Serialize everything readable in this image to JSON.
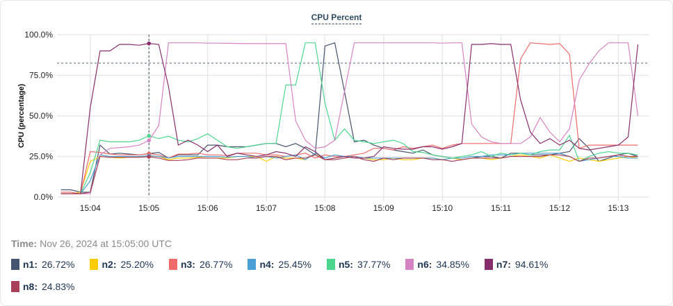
{
  "chart_data": {
    "type": "line",
    "title": "CPU Percent",
    "ylabel": "CPU (percentage)",
    "xlabel": "",
    "ylim": [
      0,
      100
    ],
    "xlim": [
      "15:03:26",
      "15:13:31"
    ],
    "yticks": [
      "0.0%",
      "25.0%",
      "50.0%",
      "75.0%",
      "100.0%"
    ],
    "yticks_values": [
      0,
      25,
      50,
      75,
      100
    ],
    "xticks": [
      "15:04",
      "15:05",
      "15:06",
      "15:07",
      "15:08",
      "15:09",
      "15:10",
      "15:11",
      "15:12",
      "15:13"
    ],
    "grid": true,
    "threshold": 82.5,
    "crosshair_time": "15:05:00",
    "x": [
      "15:03:30",
      "15:03:40",
      "15:03:50",
      "15:04:00",
      "15:04:10",
      "15:04:20",
      "15:04:30",
      "15:04:40",
      "15:04:50",
      "15:05:00",
      "15:05:10",
      "15:05:20",
      "15:05:30",
      "15:05:40",
      "15:05:50",
      "15:06:00",
      "15:06:10",
      "15:06:20",
      "15:06:30",
      "15:06:40",
      "15:06:50",
      "15:07:00",
      "15:07:10",
      "15:07:20",
      "15:07:30",
      "15:07:40",
      "15:07:50",
      "15:08:00",
      "15:08:10",
      "15:08:20",
      "15:08:30",
      "15:08:40",
      "15:08:50",
      "15:09:00",
      "15:09:10",
      "15:09:20",
      "15:09:30",
      "15:09:40",
      "15:09:50",
      "15:10:00",
      "15:10:10",
      "15:10:20",
      "15:10:30",
      "15:10:40",
      "15:10:50",
      "15:11:00",
      "15:11:10",
      "15:11:20",
      "15:11:30",
      "15:11:40",
      "15:11:50",
      "15:12:00",
      "15:12:10",
      "15:12:20",
      "15:12:30",
      "15:12:40",
      "15:12:50",
      "15:13:00",
      "15:13:10",
      "15:13:20"
    ],
    "series": [
      {
        "name": "n1",
        "color": "#44546f",
        "values": [
          4.5,
          4.5,
          3,
          3,
          32,
          26.5,
          27,
          26.5,
          26,
          26.72,
          27.5,
          24,
          26,
          26,
          26,
          32,
          32,
          31,
          31,
          31,
          32,
          33,
          33,
          31,
          33,
          30,
          26,
          93,
          95,
          65,
          34,
          35,
          32,
          30,
          29,
          28,
          27,
          29,
          26,
          25,
          24,
          23,
          24,
          25,
          25,
          24,
          27,
          27,
          26,
          26,
          26,
          27,
          28,
          36,
          30,
          22,
          24,
          26,
          27,
          25
        ]
      },
      {
        "name": "n2",
        "color": "#ffcc00",
        "values": [
          2,
          2,
          3,
          22,
          25,
          24.5,
          24,
          24.5,
          24.5,
          25.2,
          25,
          23,
          24,
          24,
          24.5,
          24,
          24,
          24,
          25,
          25,
          25,
          22,
          25,
          24,
          24,
          23,
          27,
          23,
          24,
          25,
          25,
          24,
          23,
          23,
          24,
          23,
          23,
          24,
          24,
          23,
          24,
          23,
          24,
          24,
          23,
          24,
          25,
          26,
          25,
          24,
          26,
          24,
          22,
          24,
          23,
          22,
          23,
          24,
          25,
          24
        ]
      },
      {
        "name": "n3",
        "color": "#f06a6a",
        "values": [
          3,
          3,
          2,
          28,
          27.5,
          26.5,
          26,
          26,
          26,
          26.77,
          26,
          24,
          26.5,
          26.5,
          27,
          26,
          26,
          25.5,
          27,
          27,
          27,
          26,
          26,
          25,
          26,
          27,
          24,
          26,
          25,
          25,
          26,
          27,
          30,
          30,
          29,
          31,
          30,
          31,
          32,
          30,
          32,
          33,
          33,
          33,
          33,
          33,
          33,
          85,
          95,
          94.5,
          94,
          94.5,
          88,
          30,
          32,
          32,
          32,
          32,
          32,
          32
        ]
      },
      {
        "name": "n4",
        "color": "#4a9fd4",
        "values": [
          2,
          2,
          2,
          10,
          26,
          25,
          25,
          25,
          25,
          25.45,
          25,
          24,
          25,
          25,
          25,
          25,
          25,
          24.5,
          25,
          25,
          24,
          25,
          24,
          25,
          26,
          23,
          27,
          24,
          26,
          25,
          25,
          24,
          24,
          24,
          24,
          24,
          24,
          24,
          24,
          23,
          24,
          24,
          25,
          25,
          26,
          26,
          26,
          27,
          27,
          27,
          27,
          27,
          25,
          22,
          23,
          24,
          25,
          25,
          24,
          24
        ]
      },
      {
        "name": "n5",
        "color": "#4cd68d",
        "values": [
          2,
          2,
          2,
          15,
          35,
          34,
          34,
          34,
          35,
          37.77,
          36,
          37.5,
          35,
          34,
          36,
          39,
          35,
          31,
          30,
          31,
          32,
          33,
          33,
          69,
          69,
          95,
          95,
          58,
          35,
          42,
          35,
          34,
          33,
          34,
          35,
          33,
          28,
          27.5,
          26,
          25,
          24,
          25,
          26,
          28,
          25,
          27,
          26,
          27,
          26,
          28,
          29,
          29,
          38,
          22,
          25,
          27,
          28,
          27,
          27,
          26
        ]
      },
      {
        "name": "n6",
        "color": "#d683c4",
        "values": [
          2,
          2,
          2,
          2,
          26,
          30,
          30.5,
          31,
          32,
          34.85,
          44,
          95,
          95,
          95,
          95,
          94.8,
          94.8,
          94.7,
          94.6,
          94.5,
          94.5,
          94.5,
          94.5,
          94.5,
          47,
          35,
          30,
          31,
          35,
          65,
          95,
          95,
          95,
          95,
          95,
          95,
          95,
          95,
          95,
          94.8,
          95,
          95,
          45,
          37,
          34,
          33,
          33,
          33,
          37,
          49,
          40,
          34,
          42,
          72,
          82,
          90,
          95,
          95,
          95,
          50
        ]
      },
      {
        "name": "n7",
        "color": "#862e6b",
        "values": [
          2,
          2,
          2,
          55,
          90,
          90,
          94,
          94,
          93.5,
          94.61,
          94,
          68,
          32,
          35,
          32,
          28,
          32,
          25,
          27,
          26,
          25,
          26,
          28,
          27,
          25,
          31,
          28,
          23,
          24,
          25,
          24,
          24,
          25,
          31,
          30,
          29.5,
          29.5,
          31,
          31,
          29.5,
          31,
          33,
          94,
          94,
          94.5,
          94,
          94,
          60,
          40,
          33,
          36,
          32,
          35,
          30,
          29,
          30,
          31,
          32,
          37,
          94
        ]
      },
      {
        "name": "n8",
        "color": "#a8405a",
        "values": [
          2,
          2,
          2,
          3,
          25,
          24.5,
          24.5,
          24.5,
          24.5,
          24.83,
          24,
          22.5,
          22.5,
          23,
          24,
          24,
          24,
          23,
          23,
          24,
          24,
          25,
          25,
          23,
          24,
          24,
          26,
          23,
          23,
          24,
          25,
          23,
          22,
          24,
          23,
          24,
          24,
          24,
          23,
          23,
          22,
          23,
          24,
          24,
          24,
          24,
          25,
          25,
          25,
          25,
          26,
          26,
          25,
          22,
          24,
          24,
          25,
          26,
          25,
          25
        ]
      }
    ]
  },
  "tooltip": {
    "time_label": "Time:",
    "time_value": "Nov 26, 2024 at 15:05:00 UTC",
    "items": [
      {
        "name": "n1:",
        "value": "26.72%",
        "color": "#44546f"
      },
      {
        "name": "n2:",
        "value": "25.20%",
        "color": "#ffcc00"
      },
      {
        "name": "n3:",
        "value": "26.77%",
        "color": "#f06a6a"
      },
      {
        "name": "n4:",
        "value": "25.45%",
        "color": "#4a9fd4"
      },
      {
        "name": "n5:",
        "value": "37.77%",
        "color": "#4cd68d"
      },
      {
        "name": "n6:",
        "value": "34.85%",
        "color": "#d683c4"
      },
      {
        "name": "n7:",
        "value": "94.61%",
        "color": "#862e6b"
      },
      {
        "name": "n8:",
        "value": "24.83%",
        "color": "#a8405a"
      }
    ]
  }
}
